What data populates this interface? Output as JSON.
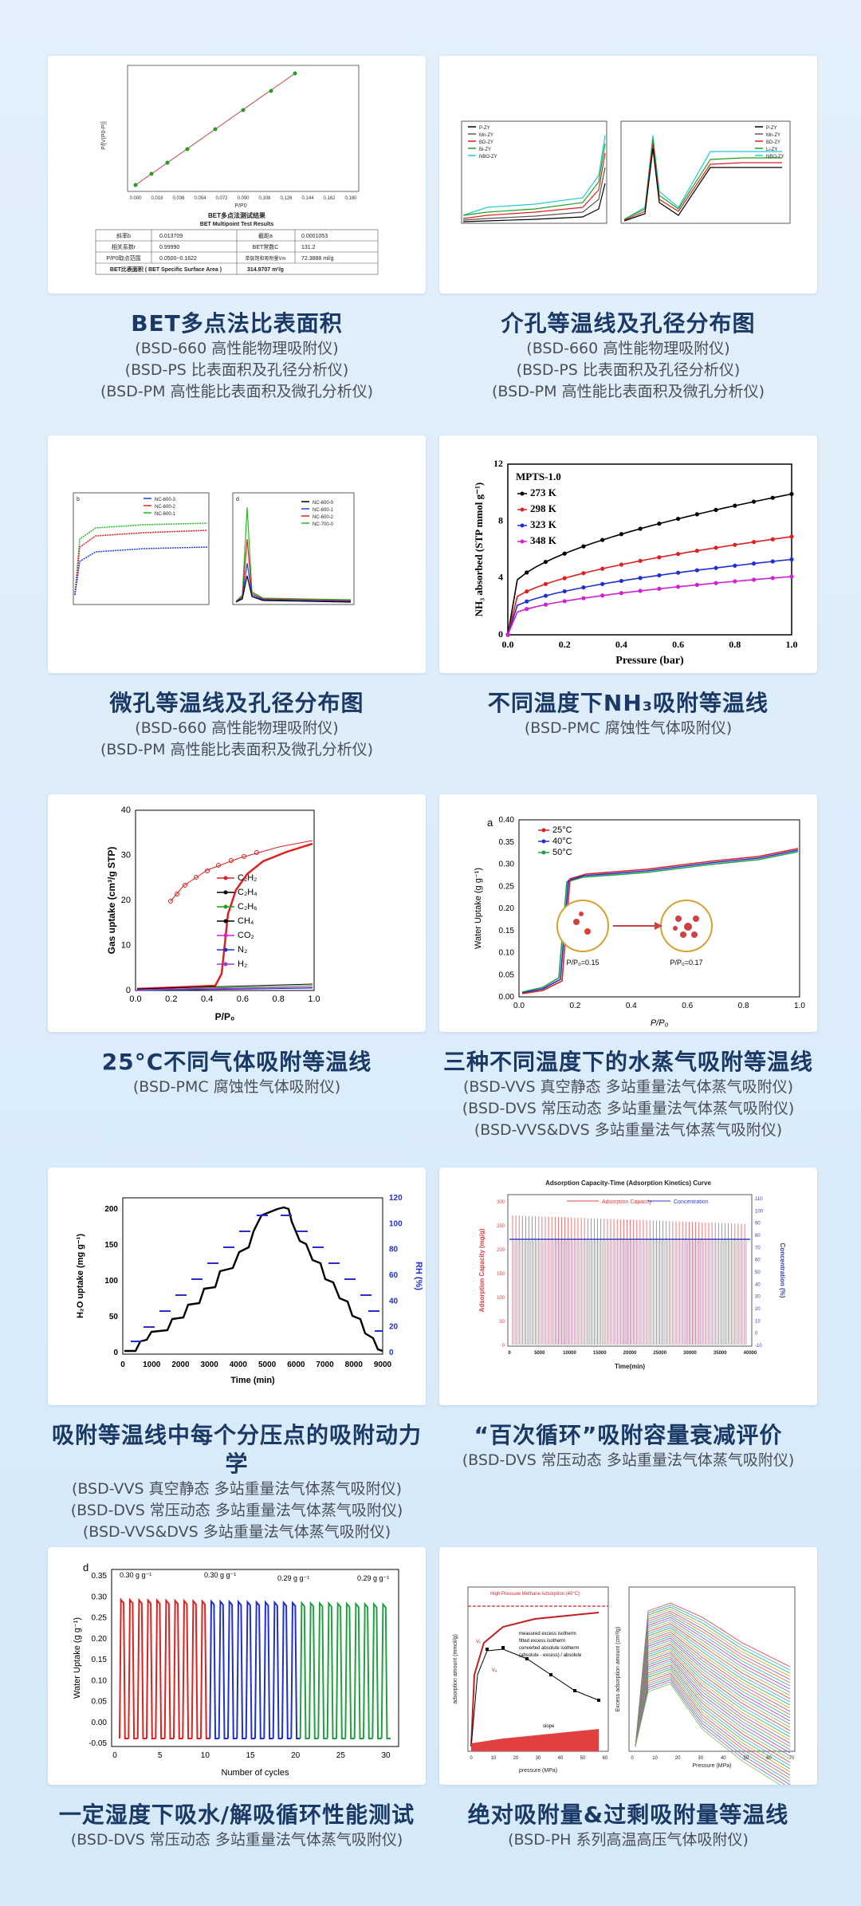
{
  "cards": [
    {
      "title": "BET多点法比表面积",
      "lines": [
        "(BSD-660 高性能物理吸附仪)",
        "(BSD-PS 比表面积及孔径分析仪)",
        "(BSD-PM 高性能比表面积及微孔分析仪)"
      ],
      "figure": {
        "table_title": "BET多点法测试结果",
        "table_subtitle": "BET Multipoint Test Results",
        "rows": [
          [
            "斜率b",
            "0.013709",
            "截距a",
            "0.0001053"
          ],
          [
            "相关系数r",
            "0.99990",
            "BET常数C",
            "131.2"
          ],
          [
            "P/P0取点范围",
            "0.0500~0.1622",
            "单层饱和吸附量Vm",
            "72.3888 ml/g"
          ]
        ],
        "result_label": "BET比表面积 ( BET Specific Surface Area )",
        "result_value": "314.9707 m²/g",
        "xlabel": "P/P0",
        "ylabel": "P/[V(P0-P)]",
        "xticks": [
          "0.000",
          "0.018",
          "0.036",
          "0.054",
          "0.072",
          "0.090",
          "0.108",
          "0.126",
          "0.144",
          "0.162",
          "0.180"
        ]
      }
    },
    {
      "title": "介孔等温线及孔径分布图",
      "lines": [
        "(BSD-660 高性能物理吸附仪)",
        "(BSD-PS 比表面积及孔径分析仪)",
        "(BSD-PM 高性能比表面积及微孔分析仪)"
      ],
      "figure": {
        "legend_a": [
          "P-ZY",
          "Mn-ZY",
          "BD-ZY",
          "Bi-ZY",
          "NBO-ZY"
        ],
        "legend_b": [
          "P-ZY",
          "Mn-ZY",
          "BD-ZY",
          "Li-ZY",
          "NBO-ZY"
        ],
        "colors": [
          "#000000",
          "#555555",
          "#e02020",
          "#20a020",
          "#20c8d8"
        ]
      }
    },
    {
      "title": "微孔等温线及孔径分布图",
      "lines": [
        "(BSD-660 高性能物理吸附仪)",
        "(BSD-PM 高性能比表面积及微孔分析仪)"
      ],
      "figure": {
        "legend": [
          "NC-600-3",
          "NC-600-2",
          "NC-600-1"
        ],
        "legend_d": [
          "NC-600-0",
          "NC-600-1",
          "NC-600-2",
          "NC-700-0"
        ],
        "colors": [
          "#2040e0",
          "#e02020",
          "#20c020",
          "#000000"
        ]
      }
    },
    {
      "title": "不同温度下NH₃吸附等温线",
      "lines": [
        "(BSD-PMC 腐蚀性气体吸附仪)"
      ],
      "figure": {
        "sample": "MPTS-1.0",
        "legend": [
          "273 K",
          "298 K",
          "323 K",
          "348 K"
        ],
        "colors": [
          "#000000",
          "#e02020",
          "#2030d0",
          "#d020d0"
        ],
        "xlabel": "Pressure (bar)",
        "ylabel": "NH₃ absorbed (STP mmol g⁻¹)",
        "xticks": [
          "0.0",
          "0.2",
          "0.4",
          "0.6",
          "0.8",
          "1.0"
        ],
        "yticks": [
          "0",
          "4",
          "8",
          "12"
        ]
      }
    },
    {
      "title": "25°C不同气体吸附等温线",
      "lines": [
        "(BSD-PMC 腐蚀性气体吸附仪)"
      ],
      "figure": {
        "legend": [
          "C₂H₂",
          "C₂H₄",
          "C₂H₆",
          "CH₄",
          "CO₂",
          "N₂",
          "H₂"
        ],
        "colors": [
          "#e02020",
          "#000000",
          "#20a020",
          "#000000",
          "#d020d0",
          "#2030d0",
          "#9040c0"
        ],
        "xlabel": "P/P₀",
        "ylabel": "Gas uptake (cm³/g STP)",
        "xticks": [
          "0.0",
          "0.2",
          "0.4",
          "0.6",
          "0.8",
          "1.0"
        ],
        "yticks": [
          "0",
          "10",
          "20",
          "30",
          "40"
        ]
      }
    },
    {
      "title": "三种不同温度下的水蒸气吸附等温线",
      "lines": [
        "(BSD-VVS 真空静态 多站重量法气体蒸气吸附仪)",
        "(BSD-DVS 常压动态 多站重量法气体蒸气吸附仪)",
        "(BSD-VVS&DVS 多站重量法气体蒸气吸附仪)"
      ],
      "figure": {
        "panel": "a",
        "legend": [
          "25°C",
          "40°C",
          "50°C"
        ],
        "colors": [
          "#e02020",
          "#2030d0",
          "#20a040"
        ],
        "xlabel": "P/P₀",
        "ylabel": "Water Uptake (g g⁻¹)",
        "xticks": [
          "0.0",
          "0.2",
          "0.4",
          "0.6",
          "0.8",
          "1.0"
        ],
        "yticks": [
          "0.00",
          "0.05",
          "0.10",
          "0.15",
          "0.20",
          "0.25",
          "0.30",
          "0.35",
          "0.40"
        ],
        "insert_1": "P/P₀=0.15",
        "insert_2": "P/P₀=0.17"
      }
    },
    {
      "title": "吸附等温线中每个分压点的吸附动力学",
      "lines": [
        "(BSD-VVS 真空静态 多站重量法气体蒸气吸附仪)",
        "(BSD-DVS 常压动态 多站重量法气体蒸气吸附仪)",
        "(BSD-VVS&DVS 多站重量法气体蒸气吸附仪)"
      ],
      "figure": {
        "xlabel": "Time (min)",
        "ylabel": "H₂O uptake (mg g⁻¹)",
        "ylabel2": "RH (%)",
        "xticks": [
          "0",
          "1000",
          "2000",
          "3000",
          "4000",
          "5000",
          "6000",
          "7000",
          "8000",
          "9000"
        ],
        "yticks": [
          "0",
          "50",
          "100",
          "150",
          "200"
        ],
        "y2ticks": [
          "0",
          "20",
          "40",
          "60",
          "80",
          "100",
          "120"
        ]
      }
    },
    {
      "title": "“百次循环”吸附容量衰减评价",
      "lines": [
        "(BSD-DVS 常压动态 多站重量法气体蒸气吸附仪)"
      ],
      "figure": {
        "chart_title": "Adsorption Capacity-Time (Adsorption Kinetics) Curve",
        "legend": [
          "Adsorption Capacity",
          "Concentration"
        ],
        "colors": [
          "#e04040",
          "#3040c0"
        ],
        "xlabel": "Time(min)",
        "ylabel": "Adsorption Capacity (mg/g)",
        "ylabel2": "Concentration (%)",
        "xticks": [
          "0",
          "5000",
          "10000",
          "15000",
          "20000",
          "25000",
          "30000",
          "35000",
          "40000"
        ],
        "yticks": [
          "0",
          "50",
          "100",
          "150",
          "200",
          "250",
          "300"
        ],
        "y2ticks": [
          "-10",
          "0",
          "10",
          "20",
          "30",
          "40",
          "50",
          "60",
          "70",
          "80",
          "90",
          "100",
          "110"
        ]
      }
    },
    {
      "title": "一定湿度下吸水/解吸循环性能测试",
      "lines": [
        "(BSD-DVS 常压动态 多站重量法气体蒸气吸附仪)"
      ],
      "figure": {
        "panel": "d",
        "annotations": [
          "0.30 g g⁻¹",
          "0.30 g g⁻¹",
          "0.29 g g⁻¹",
          "0.29 g g⁻¹"
        ],
        "xlabel": "Number of cycles",
        "ylabel": "Water Uptake (g g⁻¹)",
        "xticks": [
          "0",
          "5",
          "10",
          "15",
          "20",
          "25",
          "30"
        ],
        "yticks": [
          "-0.05",
          "0.00",
          "0.05",
          "0.10",
          "0.15",
          "0.20",
          "0.25",
          "0.30",
          "0.35"
        ]
      }
    },
    {
      "title": "绝对吸附量&过剩吸附量等温线",
      "lines": [
        "(BSD-PH 系列高温高压气体吸附仪)"
      ],
      "figure": {
        "chart_title": "High Pressure Methane Adsorption (40°C)",
        "legend": [
          "measured excess isotherm",
          "fitted excess isotherm",
          "converted absolute isotherm",
          "(absolute - excess) / absolute"
        ],
        "xlabel": "pressure (MPa)",
        "ylabel": "adsorption amount (mmol/g)",
        "xlabel2": "Pressure (MPa)",
        "ylabel2": "Excess adsorption amount (cm³/g)",
        "xticks": [
          "0",
          "10",
          "20",
          "30",
          "40",
          "50",
          "60"
        ],
        "xticks2": [
          "0",
          "10",
          "20",
          "30",
          "40",
          "50",
          "60",
          "70"
        ],
        "markers": [
          "Vₐ",
          "Vₒ",
          "slope"
        ]
      }
    }
  ]
}
